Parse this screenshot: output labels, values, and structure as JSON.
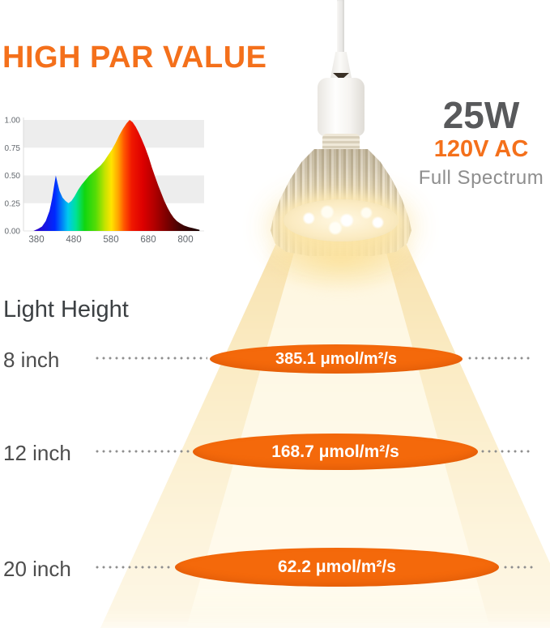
{
  "header": {
    "title": "HIGH PAR VALUE"
  },
  "product": {
    "wattage": "25W",
    "voltage": "120V AC",
    "spectrum": "Full Spectrum"
  },
  "light_height": {
    "heading": "Light Height",
    "rows": [
      {
        "height": "8 inch",
        "par": "385.1 μmol/m²/s"
      },
      {
        "height": "12 inch",
        "par": "168.7 μmol/m²/s"
      },
      {
        "height": "20 inch",
        "par": "62.2 μmol/m²/s"
      }
    ]
  },
  "colors": {
    "accent_orange": "#F4701B",
    "ellipse_orange": "#F4690B",
    "spec_dark_gray": "#58595B",
    "spec_light_gray": "#8E8E8E",
    "chart_band_gray": "#EDEDED",
    "cone_cream": "#FBEDC8"
  },
  "chart_data": {
    "type": "area",
    "title": "",
    "xlabel": "",
    "ylabel": "",
    "x_ticks": [
      380,
      480,
      580,
      680,
      800
    ],
    "y_ticks": [
      "1.00",
      "0.75",
      "0.50",
      "0.25",
      "0.00"
    ],
    "ylim": [
      0,
      1
    ],
    "xlim": [
      372,
      845
    ],
    "gray_bands": [
      [
        0.25,
        0.5
      ],
      [
        0.75,
        1.0
      ]
    ],
    "x": [
      372,
      385,
      395,
      405,
      415,
      422,
      428,
      432,
      436,
      442,
      450,
      458,
      466,
      474,
      482,
      492,
      502,
      512,
      522,
      532,
      542,
      552,
      562,
      572,
      582,
      592,
      602,
      612,
      622,
      630,
      638,
      646,
      654,
      662,
      672,
      682,
      692,
      702,
      712,
      722,
      732,
      742,
      752,
      762,
      772,
      782,
      795,
      810,
      825,
      845
    ],
    "y": [
      0.0,
      0.02,
      0.04,
      0.09,
      0.18,
      0.29,
      0.42,
      0.5,
      0.44,
      0.36,
      0.3,
      0.27,
      0.25,
      0.27,
      0.31,
      0.37,
      0.42,
      0.46,
      0.5,
      0.53,
      0.56,
      0.59,
      0.63,
      0.68,
      0.73,
      0.79,
      0.86,
      0.92,
      0.97,
      1.0,
      0.98,
      0.94,
      0.89,
      0.83,
      0.75,
      0.66,
      0.57,
      0.49,
      0.41,
      0.34,
      0.27,
      0.21,
      0.16,
      0.12,
      0.09,
      0.07,
      0.05,
      0.035,
      0.025,
      0.01
    ],
    "spectrum_gradient": [
      [
        372,
        "#3500C0"
      ],
      [
        430,
        "#0028FF"
      ],
      [
        465,
        "#00C8F0"
      ],
      [
        487,
        "#00E296"
      ],
      [
        510,
        "#10D610"
      ],
      [
        540,
        "#55DC06"
      ],
      [
        565,
        "#C6E300"
      ],
      [
        582,
        "#FFE400"
      ],
      [
        600,
        "#FFA400"
      ],
      [
        616,
        "#FF5500"
      ],
      [
        636,
        "#F01800"
      ],
      [
        665,
        "#DE0000"
      ],
      [
        700,
        "#B20000"
      ],
      [
        740,
        "#7C0000"
      ],
      [
        780,
        "#480404"
      ],
      [
        845,
        "#160000"
      ]
    ]
  }
}
